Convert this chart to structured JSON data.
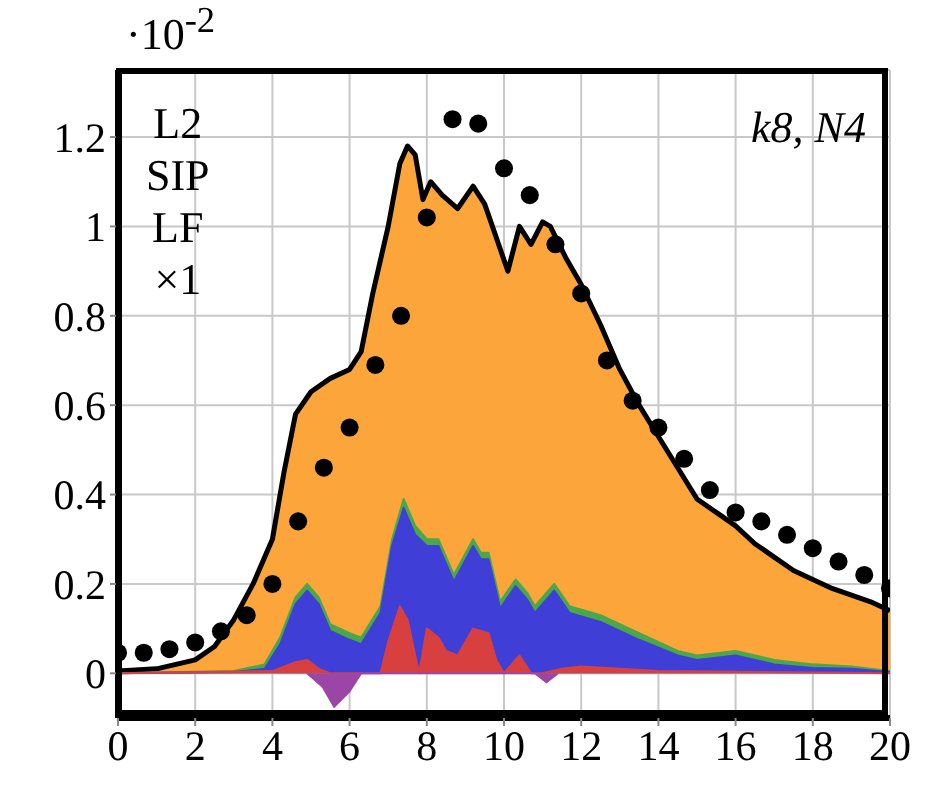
{
  "chart_data": {
    "type": "area",
    "xlim": [
      0,
      20
    ],
    "xticks": [
      0,
      2,
      4,
      6,
      8,
      10,
      12,
      14,
      16,
      18,
      20
    ],
    "ylim": [
      -0.1,
      1.35
    ],
    "yticks": [
      0,
      0.2,
      0.4,
      0.6,
      0.8,
      {
        "value": 1,
        "label": "1"
      },
      1.2
    ],
    "grid": true,
    "annotations": [
      "·10$^{-2}$",
      "L2\nSIP\nLF\n×1",
      "k8, N4"
    ],
    "series": [
      {
        "color": "#fca53a",
        "x": [
          0,
          1,
          2,
          2.5,
          3,
          3.5,
          4,
          4.3,
          4.6,
          5,
          5.5,
          6,
          6.3,
          6.6,
          7,
          7.3,
          7.5,
          7.7,
          7.9,
          8.1,
          8.4,
          8.8,
          9.2,
          9.5,
          9.7,
          9.9,
          10.1,
          10.4,
          10.7,
          11,
          11.2,
          11.6,
          12,
          12.5,
          13,
          13.5,
          14,
          14.5,
          15,
          15.5,
          16,
          16.5,
          17,
          17.5,
          18,
          18.5,
          19,
          19.5,
          20
        ],
        "values": [
          0.005,
          0.01,
          0.03,
          0.06,
          0.12,
          0.2,
          0.3,
          0.45,
          0.58,
          0.63,
          0.66,
          0.68,
          0.72,
          0.85,
          1.0,
          1.14,
          1.18,
          1.16,
          1.06,
          1.1,
          1.07,
          1.04,
          1.09,
          1.05,
          1.0,
          0.95,
          0.9,
          1.0,
          0.96,
          1.01,
          1.0,
          0.93,
          0.87,
          0.78,
          0.68,
          0.6,
          0.53,
          0.46,
          0.39,
          0.36,
          0.33,
          0.29,
          0.26,
          0.23,
          0.21,
          0.19,
          0.175,
          0.16,
          0.14
        ]
      },
      {
        "color": "#4aa84a",
        "x": [
          0,
          3,
          3.8,
          4.2,
          4.6,
          4.9,
          5.2,
          5.5,
          6,
          6.3,
          6.8,
          7.1,
          7.4,
          7.7,
          8,
          8.3,
          8.7,
          9.2,
          9.4,
          9.6,
          9.9,
          10.3,
          10.6,
          10.8,
          11.3,
          11.7,
          12.5,
          13.5,
          14.5,
          15,
          16,
          17,
          18,
          19,
          20
        ],
        "values": [
          0,
          0.005,
          0.02,
          0.08,
          0.17,
          0.2,
          0.17,
          0.11,
          0.09,
          0.08,
          0.15,
          0.3,
          0.39,
          0.33,
          0.3,
          0.3,
          0.22,
          0.3,
          0.27,
          0.27,
          0.16,
          0.21,
          0.18,
          0.15,
          0.2,
          0.15,
          0.13,
          0.09,
          0.05,
          0.04,
          0.05,
          0.03,
          0.02,
          0.015,
          0.005
        ]
      },
      {
        "color": "#3f3fd8",
        "x": [
          0,
          3,
          3.8,
          4.2,
          4.6,
          4.9,
          5.2,
          5.5,
          6,
          6.3,
          6.8,
          7.1,
          7.4,
          7.7,
          8,
          8.3,
          8.7,
          9.2,
          9.4,
          9.6,
          9.9,
          10.3,
          10.6,
          10.8,
          11.3,
          11.7,
          12.5,
          13.5,
          14.5,
          15,
          16,
          17,
          18,
          19,
          20
        ],
        "values": [
          0,
          0.003,
          0.01,
          0.065,
          0.155,
          0.185,
          0.155,
          0.095,
          0.075,
          0.065,
          0.135,
          0.285,
          0.37,
          0.31,
          0.285,
          0.285,
          0.205,
          0.285,
          0.255,
          0.255,
          0.145,
          0.195,
          0.165,
          0.135,
          0.185,
          0.135,
          0.115,
          0.075,
          0.04,
          0.03,
          0.04,
          0.02,
          0.012,
          0.01,
          0.003
        ]
      },
      {
        "color": "#d84040",
        "x": [
          0,
          4,
          4.6,
          4.9,
          5.2,
          5.5,
          6.8,
          7,
          7.3,
          7.5,
          7.8,
          8,
          8.3,
          8.5,
          8.8,
          9.2,
          9.6,
          9.8,
          10,
          10.4,
          10.7,
          11,
          11.5,
          12,
          13,
          14,
          20
        ],
        "values": [
          0,
          0.005,
          0.025,
          0.03,
          0.01,
          0,
          0,
          0.07,
          0.15,
          0.12,
          0,
          0.1,
          0.08,
          0.05,
          0.04,
          0.1,
          0.09,
          0.03,
          0,
          0.04,
          0,
          0,
          0.01,
          0.015,
          0.01,
          0.005,
          0
        ]
      },
      {
        "color": "#9b45a6",
        "x": [
          4.9,
          5.3,
          5.6,
          6,
          6.3,
          10.8,
          11.1,
          11.4
        ],
        "values": [
          0,
          -0.03,
          -0.075,
          -0.04,
          0,
          0,
          -0.02,
          0
        ]
      },
      {
        "type": "scatter",
        "color": "#000000",
        "marker": "circle",
        "x": [
          0,
          0.667,
          1.333,
          2,
          2.667,
          3.333,
          4,
          4.667,
          5.333,
          6,
          6.667,
          7.333,
          8,
          8.667,
          9.333,
          10,
          10.667,
          11.333,
          12,
          12.667,
          13.333,
          14,
          14.667,
          15.333,
          16,
          16.667,
          17.333,
          18,
          18.667,
          19.333,
          20
        ],
        "values": [
          0.046,
          0.046,
          0.054,
          0.069,
          0.094,
          0.13,
          0.2,
          0.34,
          0.46,
          0.55,
          0.69,
          0.8,
          1.02,
          1.24,
          1.23,
          1.13,
          1.07,
          0.96,
          0.85,
          0.7,
          0.61,
          0.55,
          0.48,
          0.41,
          0.36,
          0.34,
          0.31,
          0.28,
          0.25,
          0.22,
          0.19
        ]
      }
    ]
  }
}
